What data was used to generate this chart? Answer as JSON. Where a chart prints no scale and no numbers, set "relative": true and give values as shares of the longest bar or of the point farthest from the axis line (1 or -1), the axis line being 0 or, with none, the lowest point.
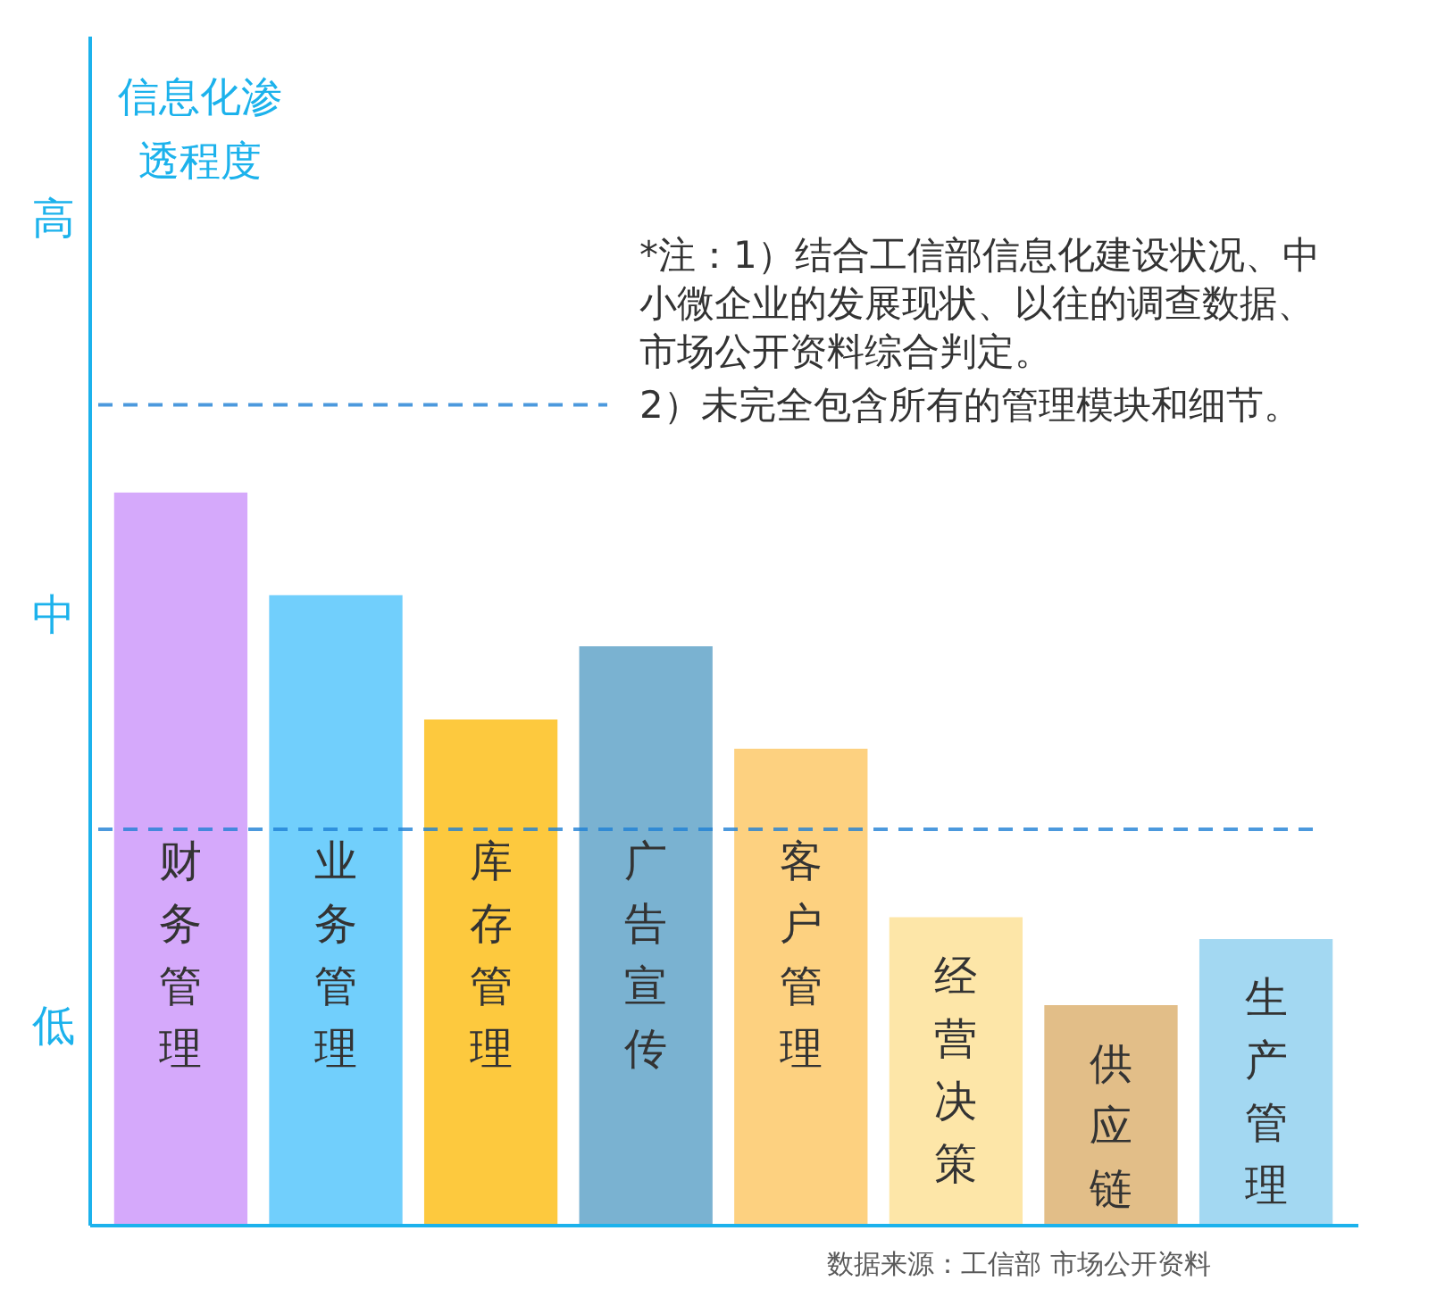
{
  "chart_data": {
    "type": "bar",
    "relative": true,
    "categories": [
      "财务管理",
      "业务管理",
      "库存管理",
      "广告宣传",
      "客户管理",
      "经营决策",
      "供应链",
      "生产管理"
    ],
    "values": [
      1,
      0.86,
      0.69,
      0.79,
      0.65,
      0.42,
      0.3,
      0.39
    ],
    "colors": [
      "#d5a9fb",
      "#71cffc",
      "#fdc93e",
      "#7ab2d1",
      "#fdd180",
      "#fde6a8",
      "#e2be88",
      "#a3d8f2"
    ],
    "ref_lines": [
      {
        "axis": "y",
        "value": 0.54,
        "color": "#1f7fd4",
        "line_style": "dashed"
      },
      {
        "axis": "y",
        "value": 1.12,
        "color": "#1f7fd4",
        "line_style": "dashed"
      }
    ],
    "annotations": [
      "信息化渗透程度",
      "低",
      "中",
      "高",
      "*注：1）结合工信部信息化建设状况、中小微企业的发展现状、以往的调查数据、市场公开资料综合判定。",
      "2）未完全包含所有的管理模块和细节。",
      "数据来源：工信部 市场公开资料"
    ]
  }
}
